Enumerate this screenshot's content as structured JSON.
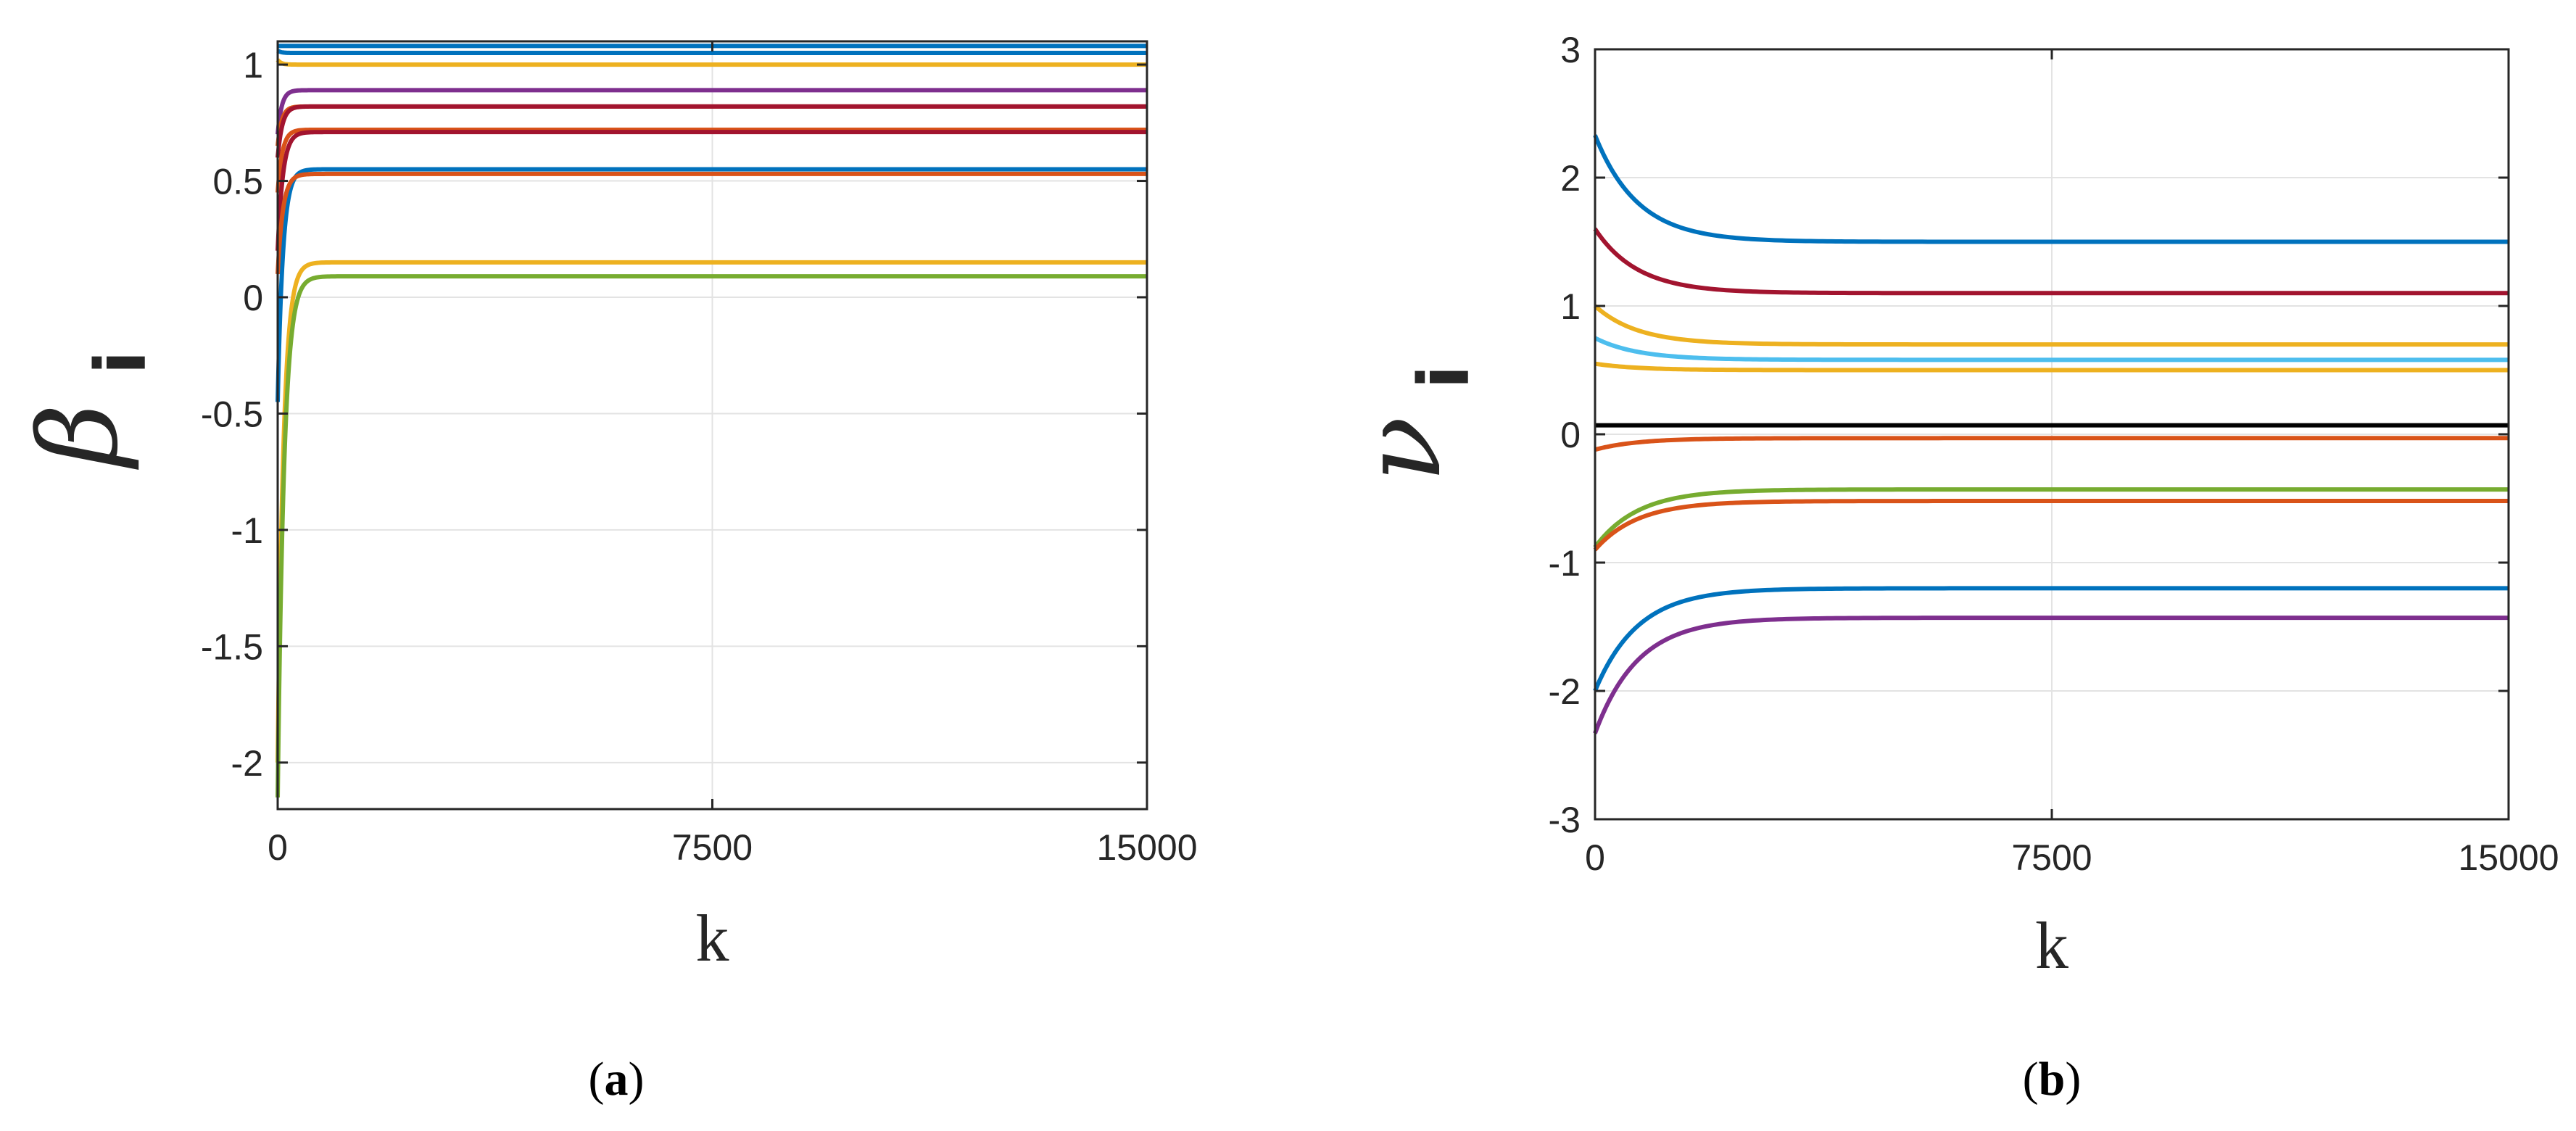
{
  "chart_data": [
    {
      "type": "line",
      "panel": "a",
      "caption_open": "(",
      "caption_letter": "a",
      "caption_close": ")",
      "xlabel": "k",
      "ylabel_symbol": "β",
      "ylabel_subscript": "i",
      "xlim": [
        0,
        15000
      ],
      "ylim": [
        -2.2,
        1.1
      ],
      "xticks": [
        0,
        7500,
        15000
      ],
      "xtick_labels": [
        "0",
        "7500",
        "15000"
      ],
      "yticks": [
        1,
        0.5,
        0,
        -0.5,
        -1,
        -1.5,
        -2
      ],
      "ytick_labels": [
        "1",
        "0.5",
        "0",
        "-0.5",
        "-1",
        "-1.5",
        "-2"
      ],
      "grid": true,
      "series": [
        {
          "name": "s1",
          "color": "#0072BD",
          "start": 1.08,
          "final": 1.08,
          "settle": 40
        },
        {
          "name": "s2",
          "color": "#0072BD",
          "start": 1.06,
          "final": 1.05,
          "settle": 60
        },
        {
          "name": "s3",
          "color": "#EDB120",
          "start": 1.02,
          "final": 1.0,
          "settle": 60
        },
        {
          "name": "s4",
          "color": "#7E2F8E",
          "start": 0.7,
          "final": 0.89,
          "settle": 70
        },
        {
          "name": "s5",
          "color": "#D95319",
          "start": 0.65,
          "final": 0.82,
          "settle": 70
        },
        {
          "name": "s6",
          "color": "#A2142F",
          "start": 0.6,
          "final": 0.82,
          "settle": 80
        },
        {
          "name": "s7",
          "color": "#D95319",
          "start": 0.45,
          "final": 0.72,
          "settle": 80
        },
        {
          "name": "s8",
          "color": "#A2142F",
          "start": 0.2,
          "final": 0.71,
          "settle": 90
        },
        {
          "name": "s9",
          "color": "#0072BD",
          "start": -0.45,
          "final": 0.55,
          "settle": 90
        },
        {
          "name": "s10",
          "color": "#D95319",
          "start": 0.1,
          "final": 0.53,
          "settle": 90
        },
        {
          "name": "s11",
          "color": "#EDB120",
          "start": -2.0,
          "final": 0.15,
          "settle": 100
        },
        {
          "name": "s12",
          "color": "#77AC30",
          "start": -2.15,
          "final": 0.09,
          "settle": 110
        }
      ]
    },
    {
      "type": "line",
      "panel": "b",
      "caption_open": "(",
      "caption_letter": "b",
      "caption_close": ")",
      "xlabel": "k",
      "ylabel_symbol": "ν",
      "ylabel_subscript": "i",
      "xlim": [
        0,
        15000
      ],
      "ylim": [
        -3,
        3
      ],
      "xticks": [
        0,
        7500,
        15000
      ],
      "xtick_labels": [
        "0",
        "7500",
        "15000"
      ],
      "yticks": [
        3,
        2,
        1,
        0,
        -1,
        -2,
        -3
      ],
      "ytick_labels": [
        "3",
        "2",
        "1",
        "0",
        "-1",
        "-2",
        "-3"
      ],
      "grid": true,
      "series": [
        {
          "name": "n1",
          "color": "#0072BD",
          "start": 2.33,
          "final": 1.5,
          "settle": 700
        },
        {
          "name": "n2",
          "color": "#A2142F",
          "start": 1.6,
          "final": 1.1,
          "settle": 700
        },
        {
          "name": "n3",
          "color": "#EDB120",
          "start": 1.0,
          "final": 0.7,
          "settle": 700
        },
        {
          "name": "n4",
          "color": "#4DBEEE",
          "start": 0.75,
          "final": 0.58,
          "settle": 700
        },
        {
          "name": "n5",
          "color": "#EDB120",
          "start": 0.55,
          "final": 0.5,
          "settle": 700
        },
        {
          "name": "n6",
          "color": "#000000",
          "start": 0.07,
          "final": 0.07,
          "settle": 700
        },
        {
          "name": "n7",
          "color": "#D95319",
          "start": -0.12,
          "final": -0.03,
          "settle": 700
        },
        {
          "name": "n8",
          "color": "#77AC30",
          "start": -0.88,
          "final": -0.43,
          "settle": 700
        },
        {
          "name": "n9",
          "color": "#D95319",
          "start": -0.9,
          "final": -0.52,
          "settle": 700
        },
        {
          "name": "n10",
          "color": "#0072BD",
          "start": -2.0,
          "final": -1.2,
          "settle": 700
        },
        {
          "name": "n11",
          "color": "#7E2F8E",
          "start": -2.33,
          "final": -1.43,
          "settle": 700
        }
      ]
    }
  ]
}
